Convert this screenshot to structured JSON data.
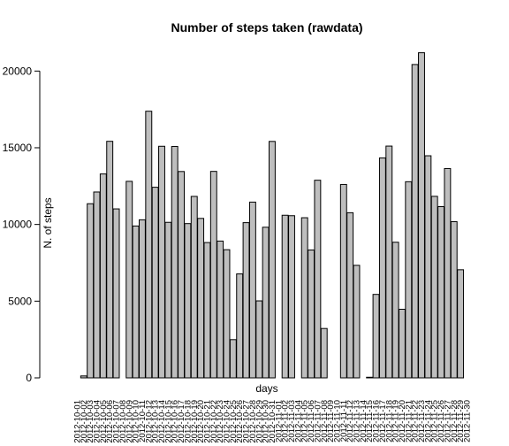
{
  "chart_data": {
    "type": "bar",
    "title": "Number of steps taken (rawdata)",
    "xlabel": "days",
    "ylabel": "N. of steps",
    "ylim": [
      0,
      21194
    ],
    "yticks": [
      0,
      5000,
      10000,
      15000,
      20000
    ],
    "grid": false,
    "bar_color": "#bebebe",
    "categories": [
      "2012-10-01",
      "2012-10-02",
      "2012-10-03",
      "2012-10-04",
      "2012-10-05",
      "2012-10-06",
      "2012-10-07",
      "2012-10-08",
      "2012-10-09",
      "2012-10-10",
      "2012-10-11",
      "2012-10-12",
      "2012-10-13",
      "2012-10-14",
      "2012-10-15",
      "2012-10-16",
      "2012-10-17",
      "2012-10-18",
      "2012-10-19",
      "2012-10-20",
      "2012-10-21",
      "2012-10-22",
      "2012-10-23",
      "2012-10-24",
      "2012-10-25",
      "2012-10-26",
      "2012-10-27",
      "2012-10-28",
      "2012-10-29",
      "2012-10-30",
      "2012-10-31",
      "2012-11-01",
      "2012-11-02",
      "2012-11-03",
      "2012-11-04",
      "2012-11-05",
      "2012-11-06",
      "2012-11-07",
      "2012-11-08",
      "2012-11-09",
      "2012-11-10",
      "2012-11-11",
      "2012-11-12",
      "2012-11-13",
      "2012-11-14",
      "2012-11-15",
      "2012-11-16",
      "2012-11-17",
      "2012-11-18",
      "2012-11-19",
      "2012-11-20",
      "2012-11-21",
      "2012-11-22",
      "2012-11-23",
      "2012-11-24",
      "2012-11-25",
      "2012-11-26",
      "2012-11-27",
      "2012-11-28",
      "2012-11-29",
      "2012-11-30"
    ],
    "values": [
      null,
      126,
      11352,
      12116,
      13294,
      15420,
      11015,
      null,
      12811,
      9900,
      10304,
      17382,
      12426,
      15098,
      10139,
      15084,
      13452,
      10056,
      11829,
      10395,
      8821,
      13460,
      8918,
      8355,
      2492,
      6778,
      10119,
      11458,
      5018,
      9819,
      15414,
      null,
      10600,
      10571,
      null,
      10439,
      8334,
      12883,
      3219,
      null,
      null,
      12608,
      10765,
      7336,
      null,
      41,
      5441,
      14339,
      15110,
      8841,
      4472,
      12787,
      20427,
      21194,
      14478,
      11834,
      11162,
      13646,
      10183,
      7047,
      null
    ]
  }
}
